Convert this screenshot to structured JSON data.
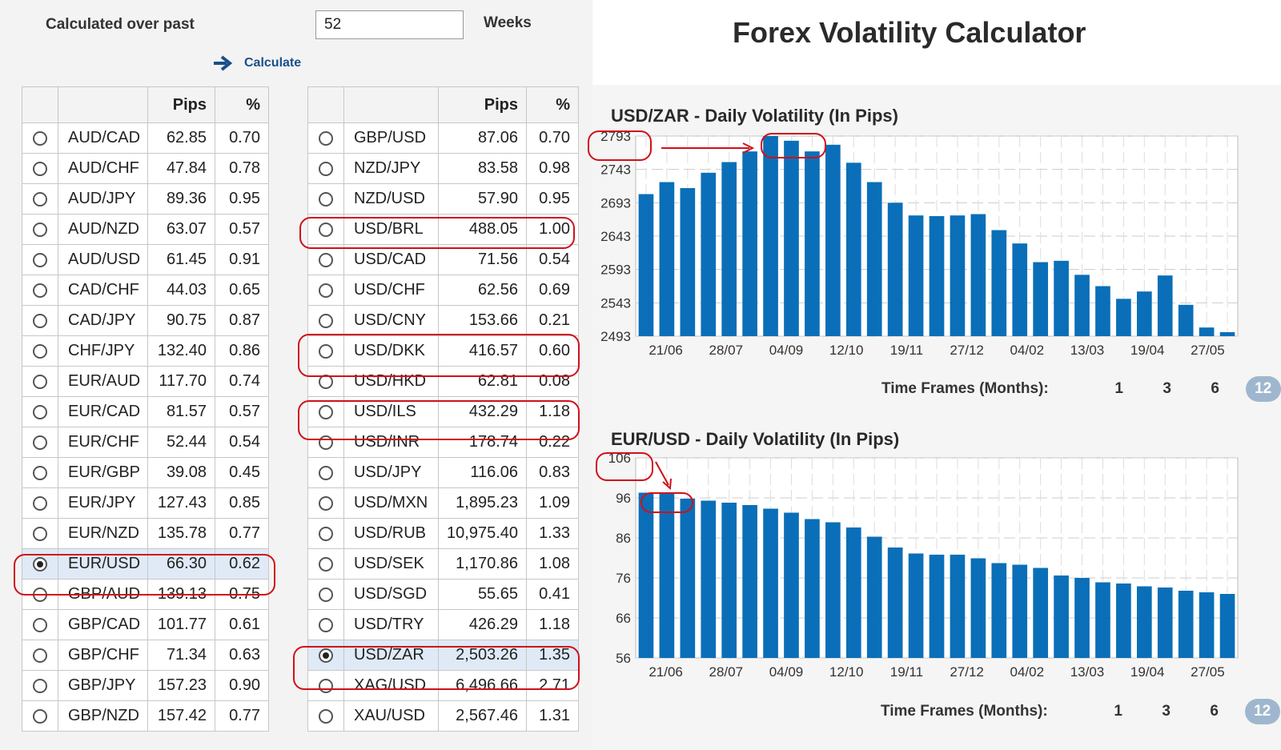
{
  "controls": {
    "calc_label": "Calculated over past",
    "weeks_value": "52",
    "weeks_unit": "Weeks",
    "calculate_label": "Calculate"
  },
  "table_headers": {
    "pips": "Pips",
    "pct": "%"
  },
  "left_table": [
    {
      "pair": "AUD/CAD",
      "pips": "62.85",
      "pct": "0.70",
      "selected": false
    },
    {
      "pair": "AUD/CHF",
      "pips": "47.84",
      "pct": "0.78",
      "selected": false
    },
    {
      "pair": "AUD/JPY",
      "pips": "89.36",
      "pct": "0.95",
      "selected": false
    },
    {
      "pair": "AUD/NZD",
      "pips": "63.07",
      "pct": "0.57",
      "selected": false
    },
    {
      "pair": "AUD/USD",
      "pips": "61.45",
      "pct": "0.91",
      "selected": false
    },
    {
      "pair": "CAD/CHF",
      "pips": "44.03",
      "pct": "0.65",
      "selected": false
    },
    {
      "pair": "CAD/JPY",
      "pips": "90.75",
      "pct": "0.87",
      "selected": false
    },
    {
      "pair": "CHF/JPY",
      "pips": "132.40",
      "pct": "0.86",
      "selected": false
    },
    {
      "pair": "EUR/AUD",
      "pips": "117.70",
      "pct": "0.74",
      "selected": false
    },
    {
      "pair": "EUR/CAD",
      "pips": "81.57",
      "pct": "0.57",
      "selected": false
    },
    {
      "pair": "EUR/CHF",
      "pips": "52.44",
      "pct": "0.54",
      "selected": false
    },
    {
      "pair": "EUR/GBP",
      "pips": "39.08",
      "pct": "0.45",
      "selected": false
    },
    {
      "pair": "EUR/JPY",
      "pips": "127.43",
      "pct": "0.85",
      "selected": false
    },
    {
      "pair": "EUR/NZD",
      "pips": "135.78",
      "pct": "0.77",
      "selected": false
    },
    {
      "pair": "EUR/USD",
      "pips": "66.30",
      "pct": "0.62",
      "selected": true
    },
    {
      "pair": "GBP/AUD",
      "pips": "139.13",
      "pct": "0.75",
      "selected": false
    },
    {
      "pair": "GBP/CAD",
      "pips": "101.77",
      "pct": "0.61",
      "selected": false
    },
    {
      "pair": "GBP/CHF",
      "pips": "71.34",
      "pct": "0.63",
      "selected": false
    },
    {
      "pair": "GBP/JPY",
      "pips": "157.23",
      "pct": "0.90",
      "selected": false
    },
    {
      "pair": "GBP/NZD",
      "pips": "157.42",
      "pct": "0.77",
      "selected": false
    }
  ],
  "right_table": [
    {
      "pair": "GBP/USD",
      "pips": "87.06",
      "pct": "0.70",
      "selected": false
    },
    {
      "pair": "NZD/JPY",
      "pips": "83.58",
      "pct": "0.98",
      "selected": false
    },
    {
      "pair": "NZD/USD",
      "pips": "57.90",
      "pct": "0.95",
      "selected": false
    },
    {
      "pair": "USD/BRL",
      "pips": "488.05",
      "pct": "1.00",
      "selected": false
    },
    {
      "pair": "USD/CAD",
      "pips": "71.56",
      "pct": "0.54",
      "selected": false
    },
    {
      "pair": "USD/CHF",
      "pips": "62.56",
      "pct": "0.69",
      "selected": false
    },
    {
      "pair": "USD/CNY",
      "pips": "153.66",
      "pct": "0.21",
      "selected": false
    },
    {
      "pair": "USD/DKK",
      "pips": "416.57",
      "pct": "0.60",
      "selected": false
    },
    {
      "pair": "USD/HKD",
      "pips": "62.81",
      "pct": "0.08",
      "selected": false
    },
    {
      "pair": "USD/ILS",
      "pips": "432.29",
      "pct": "1.18",
      "selected": false
    },
    {
      "pair": "USD/INR",
      "pips": "178.74",
      "pct": "0.22",
      "selected": false
    },
    {
      "pair": "USD/JPY",
      "pips": "116.06",
      "pct": "0.83",
      "selected": false
    },
    {
      "pair": "USD/MXN",
      "pips": "1,895.23",
      "pct": "1.09",
      "selected": false
    },
    {
      "pair": "USD/RUB",
      "pips": "10,975.40",
      "pct": "1.33",
      "selected": false
    },
    {
      "pair": "USD/SEK",
      "pips": "1,170.86",
      "pct": "1.08",
      "selected": false
    },
    {
      "pair": "USD/SGD",
      "pips": "55.65",
      "pct": "0.41",
      "selected": false
    },
    {
      "pair": "USD/TRY",
      "pips": "426.29",
      "pct": "1.18",
      "selected": false
    },
    {
      "pair": "USD/ZAR",
      "pips": "2,503.26",
      "pct": "1.35",
      "selected": true
    },
    {
      "pair": "XAG/USD",
      "pips": "6,496.66",
      "pct": "2.71",
      "selected": false
    },
    {
      "pair": "XAU/USD",
      "pips": "2,567.46",
      "pct": "1.31",
      "selected": false
    }
  ],
  "title": "Forex Volatility Calculator",
  "timeframes": {
    "label": "Time Frames (Months):",
    "options": [
      "1",
      "3",
      "6",
      "12"
    ],
    "active": "12"
  },
  "colors": {
    "bar": "#0a6fb8",
    "highlight": "#d0101a",
    "active_tf": "#9fb7ce"
  },
  "chart_data": [
    {
      "type": "bar",
      "title": "USD/ZAR - Daily Volatility (In Pips)",
      "yticks": [
        "2793",
        "2743",
        "2693",
        "2643",
        "2593",
        "2543",
        "2493"
      ],
      "ylim": [
        2493,
        2793
      ],
      "xticks": [
        "21/06",
        "28/07",
        "04/09",
        "12/10",
        "19/11",
        "27/12",
        "04/02",
        "13/03",
        "19/04",
        "27/05"
      ],
      "values": [
        2706,
        2724,
        2715,
        2738,
        2754,
        2770,
        2793,
        2786,
        2770,
        2780,
        2753,
        2724,
        2693,
        2674,
        2673,
        2674,
        2676,
        2652,
        2632,
        2604,
        2606,
        2585,
        2568,
        2549,
        2560,
        2584,
        2540,
        2506,
        2499
      ],
      "grid": true
    },
    {
      "type": "bar",
      "title": "EUR/USD - Daily Volatility (In Pips)",
      "yticks": [
        "106",
        "96",
        "86",
        "76",
        "66",
        "56"
      ],
      "ylim": [
        56,
        106
      ],
      "xticks": [
        "21/06",
        "28/07",
        "04/09",
        "12/10",
        "19/11",
        "27/12",
        "04/02",
        "13/03",
        "19/04",
        "27/05"
      ],
      "values": [
        97.3,
        97.2,
        95.8,
        95.3,
        94.8,
        94.2,
        93.3,
        92.3,
        90.7,
        89.9,
        88.6,
        86.3,
        83.6,
        82.1,
        81.8,
        81.8,
        80.9,
        79.7,
        79.3,
        78.5,
        76.6,
        76.0,
        74.9,
        74.6,
        73.9,
        73.6,
        72.8,
        72.4,
        72.0
      ],
      "grid": true
    }
  ]
}
